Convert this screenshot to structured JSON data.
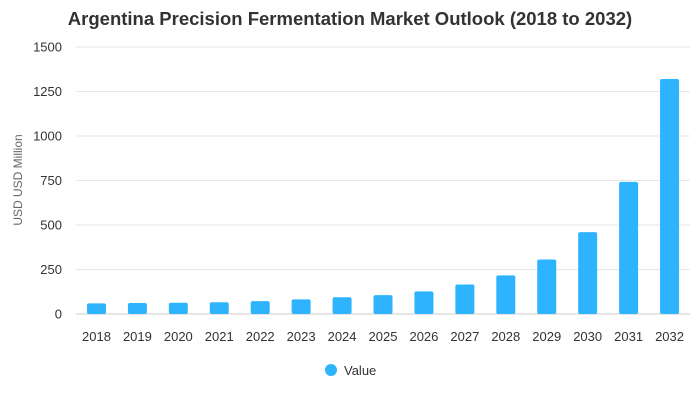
{
  "chart_data": {
    "type": "bar",
    "title": "Argentina Precision Fermentation Market Outlook (2018 to 2032)",
    "ylabel": "USD USD Million",
    "xlabel": "",
    "categories": [
      "2018",
      "2019",
      "2020",
      "2021",
      "2022",
      "2023",
      "2024",
      "2025",
      "2026",
      "2027",
      "2028",
      "2029",
      "2030",
      "2031",
      "2032"
    ],
    "series": [
      {
        "name": "Value",
        "values": [
          60,
          62,
          63,
          66,
          72,
          82,
          94,
          106,
          127,
          166,
          217,
          306,
          460,
          742,
          1320
        ],
        "color": "#2eb4ff"
      }
    ],
    "ylim": [
      0,
      1500
    ],
    "yticks": [
      0,
      250,
      500,
      750,
      1000,
      1250,
      1500
    ],
    "grid": true,
    "legend_position": "bottom"
  }
}
